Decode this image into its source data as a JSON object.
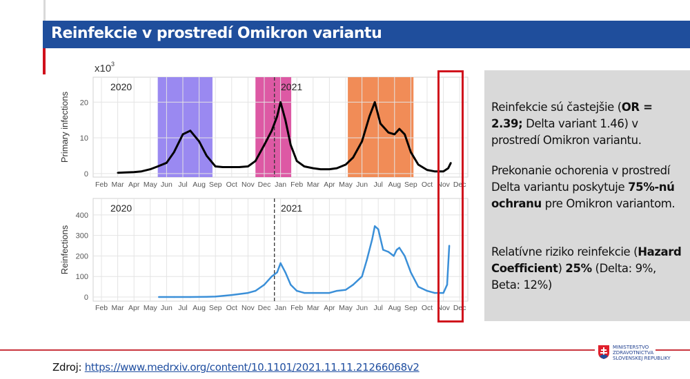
{
  "slide": {
    "title": "Reinfekcie v prostredí Omikron variantu",
    "source_label": "Zdroj:",
    "source_link": "https://www.medrxiv.org/content/10.1101/2021.11.11.21266068v2",
    "logo": {
      "line1": "MINISTERSTVO",
      "line2": "ZDRAVOTNÍCTVA",
      "line3": "SLOVENSKEJ REPUBLIKY"
    },
    "colors": {
      "title_bar": "#1f4e9c",
      "accent_red": "#d0101c",
      "panel_bg": "#d9d9d9"
    }
  },
  "panel": {
    "p1": {
      "a": "Reinfekcie sú častejšie (",
      "b": "OR = 2.39;",
      "c": " Delta variant 1.46) v prostredí Omikron variantu."
    },
    "p2": {
      "a": "Prekonanie ochorenia v prostredí Delta variantu poskytuje ",
      "b": " 75%-nú ochranu",
      "c": " pre Omikron variantom."
    },
    "p3": {
      "a": "Relatívne riziko reinfekcie (",
      "b": "Hazard Coefficient",
      "c": ") ",
      "d": "25%",
      "e": " (Delta: 9%, Beta: 12%)"
    }
  },
  "chart_data": [
    {
      "type": "line",
      "ylabel": "Primary infections",
      "yscale_label": "x10",
      "yscale_exp": "3",
      "ylim": [
        -1,
        27
      ],
      "yticks": [
        0,
        10,
        20
      ],
      "xticks": [
        "Feb",
        "Mar",
        "Apr",
        "May",
        "Jun",
        "Jul",
        "Aug",
        "Sep",
        "Oct",
        "Nov",
        "Dec",
        "Jan",
        "Feb",
        "Mar",
        "Apr",
        "May",
        "Jun",
        "Jul",
        "Aug",
        "Sep",
        "Oct",
        "Nov",
        "Dec"
      ],
      "year_labels": [
        "2020",
        "2021"
      ],
      "grid": true,
      "line_color": "#000000",
      "bands": [
        {
          "start": "2020-05-15",
          "end": "2020-08-26",
          "color": "#8f7cf0"
        },
        {
          "start": "2020-11-15",
          "end": "2021-01-21",
          "color": "#d9479a"
        },
        {
          "start": "2021-05-05",
          "end": "2021-09-06",
          "color": "#ef7f45"
        }
      ],
      "vline": "2020-12-20",
      "x": [
        "2020-03-01",
        "2020-03-15",
        "2020-04-01",
        "2020-04-15",
        "2020-05-01",
        "2020-05-15",
        "2020-06-01",
        "2020-06-15",
        "2020-07-01",
        "2020-07-15",
        "2020-08-01",
        "2020-08-15",
        "2020-09-01",
        "2020-09-15",
        "2020-10-01",
        "2020-10-15",
        "2020-11-01",
        "2020-11-15",
        "2020-12-01",
        "2020-12-15",
        "2020-12-25",
        "2021-01-01",
        "2021-01-10",
        "2021-01-20",
        "2021-02-01",
        "2021-02-15",
        "2021-03-01",
        "2021-03-15",
        "2021-04-01",
        "2021-04-15",
        "2021-05-01",
        "2021-05-15",
        "2021-06-01",
        "2021-06-15",
        "2021-06-25",
        "2021-07-05",
        "2021-07-20",
        "2021-08-01",
        "2021-08-10",
        "2021-08-20",
        "2021-09-01",
        "2021-09-15",
        "2021-10-01",
        "2021-10-15",
        "2021-11-01",
        "2021-11-10",
        "2021-11-15"
      ],
      "y": [
        0.2,
        0.3,
        0.4,
        0.6,
        1.2,
        2,
        3,
        6,
        11,
        12,
        9,
        5,
        2,
        1.8,
        1.8,
        1.8,
        2,
        3.5,
        8,
        12,
        16,
        20,
        15,
        8,
        3.5,
        2,
        1.5,
        1.2,
        1.2,
        1.5,
        2.5,
        4.5,
        9,
        16,
        20,
        14,
        11.5,
        11,
        12.5,
        11,
        6,
        2.5,
        1,
        0.6,
        0.6,
        1.5,
        3
      ]
    },
    {
      "type": "line",
      "ylabel": "Reinfections",
      "ylim": [
        -20,
        480
      ],
      "yticks": [
        0,
        100,
        200,
        300,
        400
      ],
      "xticks": [
        "Feb",
        "Mar",
        "Apr",
        "May",
        "Jun",
        "Jul",
        "Aug",
        "Sep",
        "Oct",
        "Nov",
        "Dec",
        "Jan",
        "Feb",
        "Mar",
        "Apr",
        "May",
        "Jun",
        "Jul",
        "Aug",
        "Sep",
        "Oct",
        "Nov",
        "Dec"
      ],
      "year_labels": [
        "2020",
        "2021"
      ],
      "grid": true,
      "line_color": "#3a8fd8",
      "vline": "2020-12-20",
      "x": [
        "2020-05-17",
        "2020-06-15",
        "2020-07-15",
        "2020-08-15",
        "2020-09-01",
        "2020-10-01",
        "2020-11-01",
        "2020-11-15",
        "2020-12-01",
        "2020-12-15",
        "2020-12-25",
        "2021-01-01",
        "2021-01-10",
        "2021-01-20",
        "2021-02-01",
        "2021-02-15",
        "2021-03-01",
        "2021-04-01",
        "2021-04-15",
        "2021-05-01",
        "2021-05-15",
        "2021-06-01",
        "2021-06-10",
        "2021-06-20",
        "2021-06-25",
        "2021-07-01",
        "2021-07-10",
        "2021-07-20",
        "2021-07-30",
        "2021-08-05",
        "2021-08-10",
        "2021-08-20",
        "2021-09-01",
        "2021-09-15",
        "2021-10-01",
        "2021-10-15",
        "2021-11-01",
        "2021-11-08",
        "2021-11-12"
      ],
      "y": [
        0,
        0,
        0,
        1,
        2,
        10,
        20,
        30,
        60,
        100,
        120,
        165,
        120,
        60,
        30,
        20,
        20,
        20,
        30,
        35,
        60,
        100,
        180,
        280,
        345,
        330,
        230,
        220,
        200,
        230,
        240,
        200,
        120,
        50,
        30,
        20,
        20,
        60,
        250
      ]
    }
  ]
}
